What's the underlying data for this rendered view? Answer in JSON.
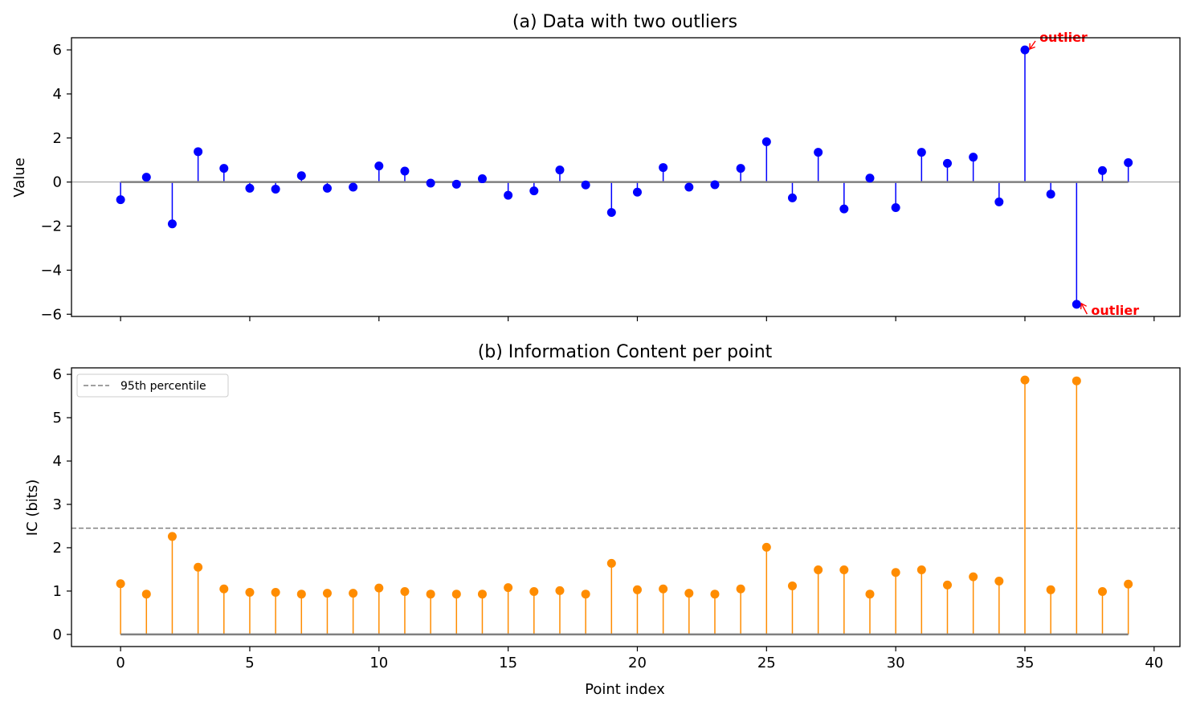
{
  "chart_data": [
    {
      "type": "stem",
      "title": "(a)  Data with two outliers",
      "xlabel": "",
      "ylabel": "Value",
      "xlim": [
        -1.9,
        41
      ],
      "ylim": [
        -6.1,
        6.55
      ],
      "xticks": [
        "0",
        "5",
        "10",
        "15",
        "20",
        "25",
        "30",
        "35",
        "40"
      ],
      "yticks": [
        "−6",
        "−4",
        "−2",
        "0",
        "2",
        "4",
        "6"
      ],
      "grid": false,
      "color": "#0000ff",
      "baseline_color": "#808080",
      "x": [
        0,
        1,
        2,
        3,
        4,
        5,
        6,
        7,
        8,
        9,
        10,
        11,
        12,
        13,
        14,
        15,
        16,
        17,
        18,
        19,
        20,
        21,
        22,
        23,
        24,
        25,
        26,
        27,
        28,
        29,
        30,
        31,
        32,
        33,
        34,
        35,
        36,
        37,
        38,
        39
      ],
      "values": [
        -0.8,
        0.22,
        -1.9,
        1.38,
        0.62,
        -0.28,
        -0.32,
        0.29,
        -0.28,
        -0.23,
        0.73,
        0.5,
        -0.05,
        -0.1,
        0.15,
        -0.6,
        -0.4,
        0.55,
        -0.13,
        -1.38,
        -0.46,
        0.66,
        -0.23,
        -0.12,
        0.62,
        1.83,
        -0.72,
        1.35,
        -1.22,
        0.18,
        -1.16,
        1.35,
        0.85,
        1.13,
        -0.9,
        6.0,
        -0.55,
        -5.55,
        0.52,
        0.88
      ],
      "annotations": [
        {
          "text": "outlier",
          "x": 35,
          "y": 6.0,
          "text_x": 35.5,
          "text_y": 6.55
        },
        {
          "text": "outlier",
          "x": 37,
          "y": -5.55,
          "text_x": 37.5,
          "text_y": -5.85
        }
      ]
    },
    {
      "type": "stem",
      "title": "(b)  Information Content per point",
      "xlabel": "Point index",
      "ylabel": "IC (bits)",
      "xlim": [
        -1.9,
        41
      ],
      "ylim": [
        -0.28,
        6.15
      ],
      "xticks": [
        "0",
        "5",
        "10",
        "15",
        "20",
        "25",
        "30",
        "35",
        "40"
      ],
      "yticks": [
        "0",
        "1",
        "2",
        "3",
        "4",
        "5",
        "6"
      ],
      "grid": false,
      "color": "#ff8c00",
      "baseline_color": "#808080",
      "x": [
        0,
        1,
        2,
        3,
        4,
        5,
        6,
        7,
        8,
        9,
        10,
        11,
        12,
        13,
        14,
        15,
        16,
        17,
        18,
        19,
        20,
        21,
        22,
        23,
        24,
        25,
        26,
        27,
        28,
        29,
        30,
        31,
        32,
        33,
        34,
        35,
        36,
        37,
        38,
        39
      ],
      "values": [
        1.17,
        0.93,
        2.26,
        1.55,
        1.05,
        0.97,
        0.97,
        0.93,
        0.95,
        0.95,
        1.07,
        0.99,
        0.93,
        0.93,
        0.93,
        1.08,
        0.99,
        1.01,
        0.93,
        1.64,
        1.03,
        1.05,
        0.95,
        0.93,
        1.05,
        2.01,
        1.12,
        1.49,
        1.49,
        0.93,
        1.43,
        1.49,
        1.14,
        1.33,
        1.23,
        5.87,
        1.03,
        5.85,
        0.99,
        1.16
      ],
      "reference_line": {
        "value": 2.45,
        "style": "dashed",
        "color": "#808080"
      },
      "legend": {
        "placement": "upper-left",
        "entries": [
          "95th percentile"
        ]
      }
    }
  ]
}
